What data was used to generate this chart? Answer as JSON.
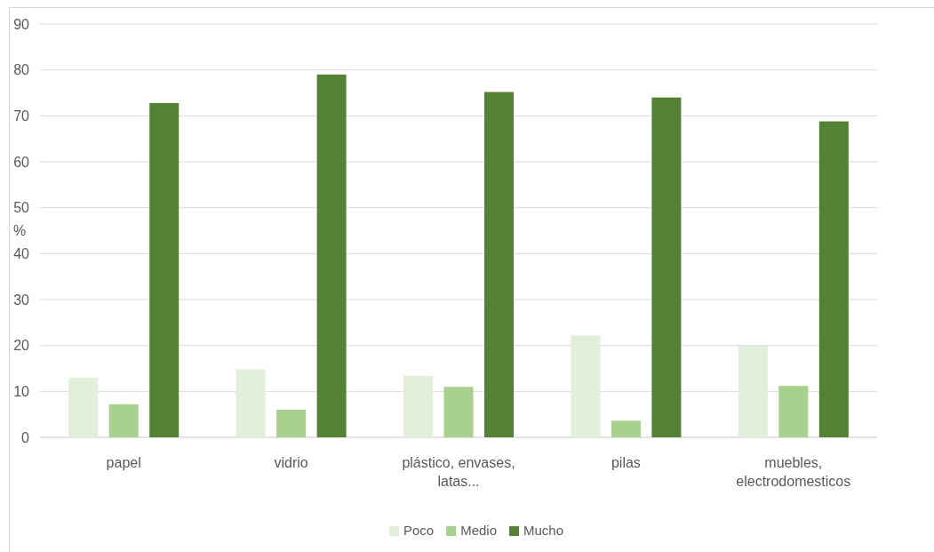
{
  "chart_data": {
    "type": "bar",
    "ylabel": "%",
    "categories": [
      "papel",
      "vidrio",
      "plástico, envases, latas...",
      "pilas",
      "muebles, electrodomesticos"
    ],
    "series": [
      {
        "name": "Poco",
        "color": "#e2efda",
        "values": [
          13,
          14.8,
          13.4,
          22.2,
          20
        ]
      },
      {
        "name": "Medio",
        "color": "#a9d18e",
        "values": [
          7.2,
          6,
          11,
          3.6,
          11.2
        ]
      },
      {
        "name": "Mucho",
        "color": "#548235",
        "values": [
          72.8,
          79,
          75.2,
          74,
          68.8
        ]
      }
    ],
    "ylim": [
      0,
      90
    ],
    "yticks": [
      0,
      10,
      20,
      30,
      40,
      50,
      60,
      70,
      80,
      90
    ],
    "grid": "y",
    "legend": "bottom"
  }
}
